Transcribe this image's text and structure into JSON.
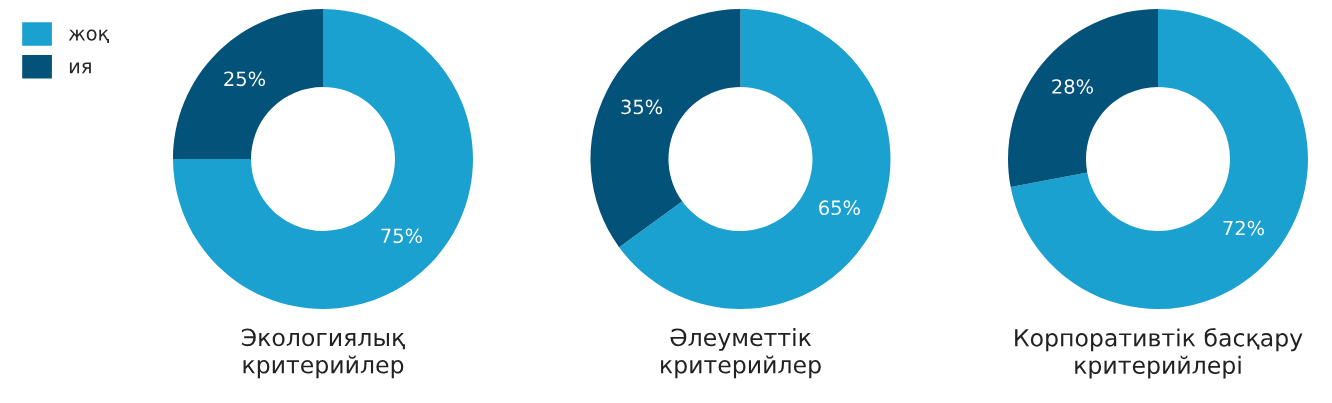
{
  "chart_data": [
    {
      "type": "donut",
      "title": "Экологиялық\nкритерийлер",
      "categories": [
        "жоқ",
        "ия"
      ],
      "values": [
        75,
        25
      ],
      "value_labels": [
        "75%",
        "25%"
      ],
      "colors": [
        "#1ba1cf",
        "#03527a"
      ],
      "legend": "top left"
    },
    {
      "type": "donut",
      "title": "Әлеуметтік\nкритерийлер",
      "categories": [
        null,
        null
      ],
      "values": [
        65,
        35
      ],
      "value_labels": [
        "65%",
        "35%"
      ],
      "colors": [
        "#1ba1cf",
        "#03527a"
      ]
    },
    {
      "type": "donut",
      "title": "Корпоративтік басқару\nкритерийлері",
      "categories": [
        null,
        null
      ],
      "values": [
        72,
        28
      ],
      "value_labels": [
        "72%",
        "28%"
      ],
      "colors": [
        "#1ba1cf",
        "#03527a"
      ]
    }
  ]
}
